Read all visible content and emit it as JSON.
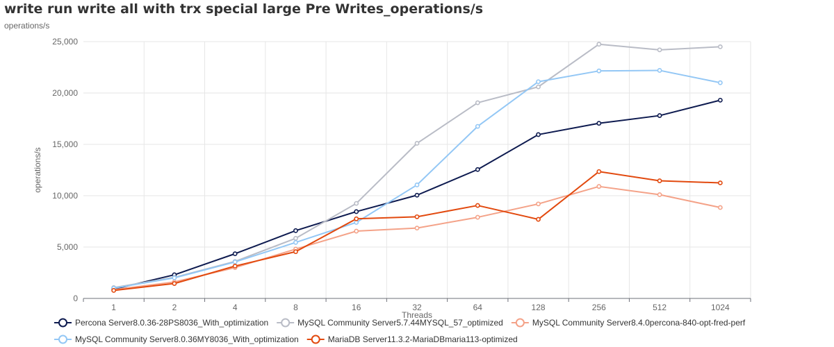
{
  "title": "write run write all with trx special large Pre Writes_operations/s",
  "unit_label": "operations/s",
  "chart_data": {
    "type": "line",
    "title": "write run write all with trx special large Pre Writes_operations/s",
    "xlabel": "Threads",
    "ylabel": "operations/s",
    "categories": [
      "1",
      "2",
      "4",
      "8",
      "16",
      "32",
      "64",
      "128",
      "256",
      "512",
      "1024"
    ],
    "ylim": [
      0,
      25000
    ],
    "yticks": [
      0,
      5000,
      10000,
      15000,
      20000,
      25000
    ],
    "ytick_labels": [
      "0",
      "5,000",
      "10,000",
      "15,000",
      "20,000",
      "25,000"
    ],
    "grid": true,
    "legend_position": "bottom-left",
    "series": [
      {
        "name": "Percona Server8.0.36-28PS8036_With_optimization",
        "color": "#0d1a4f",
        "values": [
          900,
          2300,
          4350,
          6600,
          8450,
          10050,
          12550,
          15950,
          17050,
          17800,
          19300
        ]
      },
      {
        "name": "MySQL Community Server5.7.44MYSQL_57_optimized",
        "color": "#b9bcc6",
        "values": [
          1050,
          2050,
          3600,
          5850,
          9250,
          15100,
          19050,
          20600,
          24750,
          24200,
          24500
        ]
      },
      {
        "name": "MySQL Community Server8.4.0percona-840-opt-fred-perf",
        "color": "#f4a288",
        "values": [
          850,
          1600,
          3000,
          4800,
          6550,
          6850,
          7900,
          9200,
          10900,
          10100,
          8850
        ]
      },
      {
        "name": "MySQL Community Server8.0.36MY8036_With_optimization",
        "color": "#93c7f5",
        "values": [
          1000,
          2000,
          3550,
          5450,
          7400,
          11050,
          16750,
          21100,
          22150,
          22200,
          21000
        ]
      },
      {
        "name": "MariaDB Server11.3.2-MariaDBmaria113-optimized",
        "color": "#e2490e",
        "values": [
          780,
          1450,
          3150,
          4550,
          7750,
          7950,
          9050,
          7700,
          12350,
          11450,
          11250
        ]
      }
    ]
  }
}
